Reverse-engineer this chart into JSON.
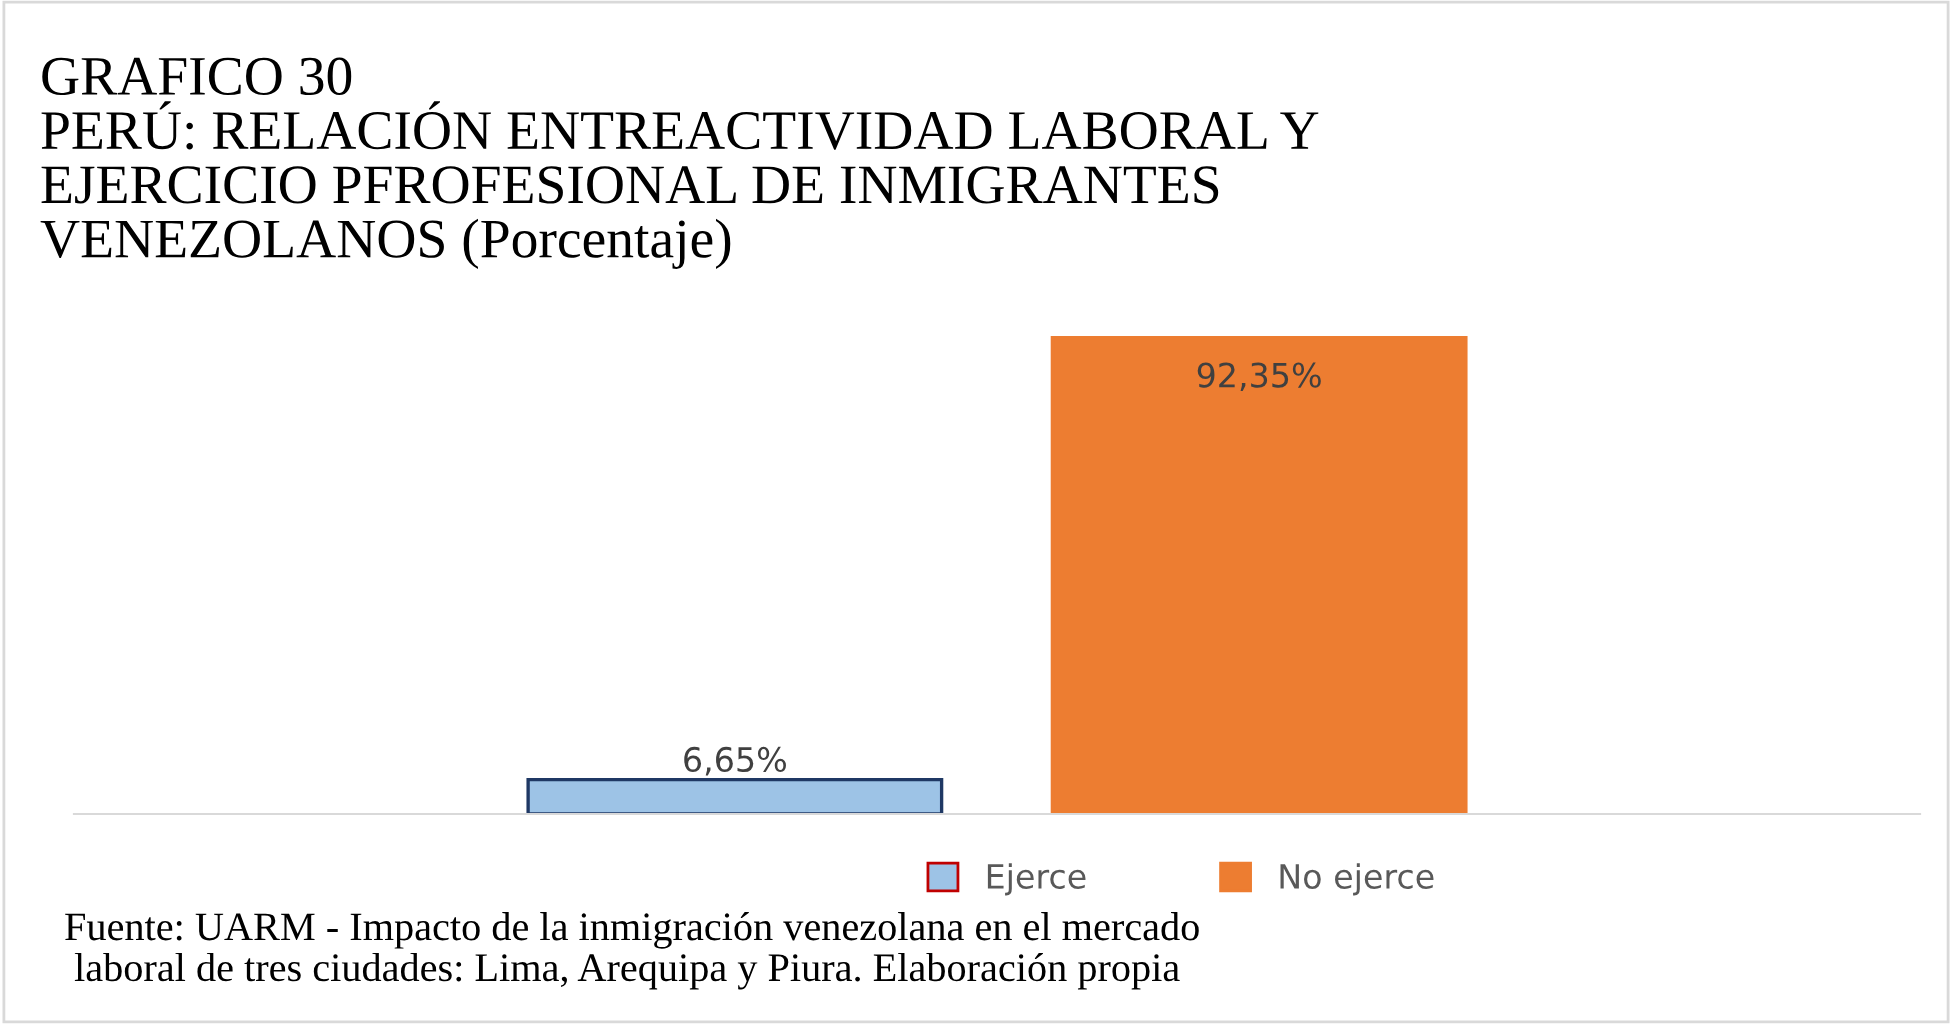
{
  "chart_data": {
    "type": "bar",
    "title": "GRAFICO 30\nPERÚ: RELACIÓN ENTREACTIVIDAD LABORAL Y\nEJERCICIO PFROFESIONAL DE INMIGRANTES\nVENEZOLANOS (Porcentaje)",
    "categories": [
      null
    ],
    "series": [
      {
        "name": "Ejerce",
        "color": "#9dc3e6",
        "values": [
          6.65
        ],
        "value_labels": [
          "6,65%"
        ]
      },
      {
        "name": "No ejerce",
        "color": "#ed7d31",
        "values": [
          92.35
        ],
        "value_labels": [
          "92,35%"
        ]
      }
    ],
    "legend": "bottom",
    "annotations": [
      "Fuente: UARM - Impacto de la inmigración venezolana en el mercado\n laboral de tres ciudades: Lima, Arequipa y Piura. Elaboración propia"
    ]
  }
}
